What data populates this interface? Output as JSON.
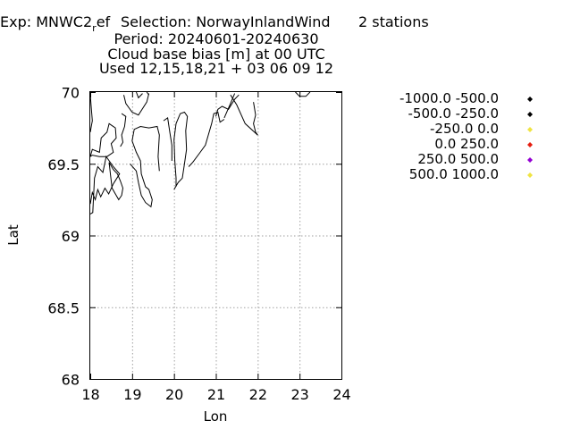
{
  "header": {
    "exp_prefix": "Exp: MNWC2",
    "exp_sub": "r",
    "exp_suffix": "ef",
    "selection": "Selection: NorwayInlandWind",
    "stations": "2 stations",
    "period": "Period: 20240601-20240630",
    "metric": "Cloud base bias [m] at  00 UTC",
    "used": "Used 12,15,18,21 + 03 06 09 12"
  },
  "chart_data": {
    "type": "scatter",
    "title": "Cloud base bias [m] at  00 UTC",
    "xlabel": "Lon",
    "ylabel": "Lat",
    "xlim": [
      18,
      24
    ],
    "ylim": [
      68,
      70
    ],
    "xticks": [
      18,
      19,
      20,
      21,
      22,
      23,
      24
    ],
    "yticks": [
      68,
      68.5,
      69,
      69.5,
      70
    ],
    "xtick_labels": [
      "18",
      "19",
      "20",
      "21",
      "22",
      "23",
      "24"
    ],
    "ytick_labels": [
      "68",
      "68.5",
      "69",
      "69.5",
      "70"
    ],
    "grid": true,
    "legend_placement": "right",
    "legend": [
      {
        "label": "-1000.0 -500.0",
        "color": "#000000"
      },
      {
        "label": "-500.0 -250.0",
        "color": "#000000"
      },
      {
        "label": "-250.0 0.0",
        "color": "#f0e442"
      },
      {
        "label": "0.0 250.0",
        "color": "#e51e10"
      },
      {
        "label": "250.0 500.0",
        "color": "#9400d3"
      },
      {
        "label": "500.0 1000.0",
        "color": "#f0e442"
      }
    ],
    "series": [],
    "coastline": [
      [
        [
          18.0,
          69.15
        ],
        [
          18.06,
          69.16
        ],
        [
          18.1,
          69.4
        ],
        [
          18.18,
          69.48
        ],
        [
          18.3,
          69.44
        ],
        [
          18.38,
          69.55
        ],
        [
          18.55,
          69.48
        ],
        [
          18.7,
          69.43
        ],
        [
          18.55,
          69.36
        ],
        [
          18.44,
          69.29
        ],
        [
          18.35,
          69.33
        ],
        [
          18.25,
          69.27
        ],
        [
          18.18,
          69.32
        ],
        [
          18.12,
          69.25
        ],
        [
          18.05,
          69.3
        ],
        [
          18.0,
          69.22
        ]
      ],
      [
        [
          18.0,
          69.55
        ],
        [
          18.05,
          69.6
        ],
        [
          18.22,
          69.58
        ],
        [
          18.26,
          69.68
        ],
        [
          18.4,
          69.72
        ],
        [
          18.45,
          69.78
        ],
        [
          18.6,
          69.75
        ],
        [
          18.62,
          69.68
        ],
        [
          18.5,
          69.64
        ],
        [
          18.55,
          69.58
        ],
        [
          18.4,
          69.55
        ],
        [
          18.22,
          69.55
        ],
        [
          18.05,
          69.56
        ],
        [
          18.0,
          69.55
        ]
      ],
      [
        [
          18.0,
          69.98
        ],
        [
          18.05,
          69.8
        ],
        [
          18.0,
          69.72
        ]
      ],
      [
        [
          18.75,
          69.85
        ],
        [
          18.85,
          69.83
        ],
        [
          18.82,
          69.76
        ],
        [
          18.75,
          69.7
        ],
        [
          18.78,
          69.65
        ],
        [
          18.72,
          69.62
        ]
      ],
      [
        [
          18.8,
          69.98
        ],
        [
          18.85,
          69.92
        ],
        [
          19.0,
          69.86
        ],
        [
          19.15,
          69.84
        ],
        [
          19.35,
          69.93
        ],
        [
          19.4,
          69.99
        ]
      ],
      [
        [
          19.1,
          70.0
        ],
        [
          19.15,
          69.96
        ],
        [
          19.25,
          69.99
        ]
      ],
      [
        [
          19.35,
          70.0
        ],
        [
          19.4,
          69.98
        ]
      ],
      [
        [
          18.45,
          69.51
        ],
        [
          18.55,
          69.46
        ],
        [
          18.65,
          69.43
        ],
        [
          18.72,
          69.38
        ],
        [
          18.78,
          69.33
        ],
        [
          18.75,
          69.28
        ],
        [
          18.68,
          69.25
        ],
        [
          18.6,
          69.29
        ],
        [
          18.52,
          69.33
        ],
        [
          18.48,
          69.43
        ],
        [
          18.45,
          69.51
        ]
      ],
      [
        [
          18.95,
          69.5
        ],
        [
          19.1,
          69.45
        ],
        [
          19.15,
          69.37
        ],
        [
          19.22,
          69.28
        ],
        [
          19.32,
          69.23
        ],
        [
          19.45,
          69.2
        ],
        [
          19.48,
          69.25
        ],
        [
          19.4,
          69.32
        ],
        [
          19.32,
          69.34
        ],
        [
          19.22,
          69.43
        ],
        [
          19.2,
          69.52
        ],
        [
          19.1,
          69.58
        ],
        [
          19.0,
          69.66
        ],
        [
          19.05,
          69.74
        ],
        [
          19.2,
          69.76
        ],
        [
          19.4,
          69.75
        ],
        [
          19.6,
          69.76
        ],
        [
          19.65,
          69.7
        ],
        [
          19.62,
          69.55
        ],
        [
          19.65,
          69.45
        ]
      ],
      [
        [
          19.75,
          69.8
        ],
        [
          19.85,
          69.82
        ],
        [
          19.9,
          69.72
        ],
        [
          19.95,
          69.63
        ],
        [
          19.95,
          69.52
        ]
      ],
      [
        [
          20.0,
          69.32
        ],
        [
          20.1,
          69.37
        ],
        [
          20.2,
          69.4
        ],
        [
          20.25,
          69.5
        ],
        [
          20.3,
          69.6
        ],
        [
          20.28,
          69.73
        ],
        [
          20.32,
          69.83
        ],
        [
          20.25,
          69.86
        ],
        [
          20.15,
          69.85
        ],
        [
          20.05,
          69.78
        ],
        [
          20.0,
          69.67
        ],
        [
          20.02,
          69.52
        ],
        [
          20.05,
          69.4
        ],
        [
          20.05,
          69.34
        ]
      ],
      [
        [
          20.35,
          69.48
        ],
        [
          20.45,
          69.51
        ],
        [
          20.6,
          69.57
        ],
        [
          20.75,
          69.63
        ],
        [
          20.9,
          69.78
        ],
        [
          20.95,
          69.85
        ],
        [
          21.05,
          69.86
        ],
        [
          21.1,
          69.79
        ],
        [
          21.2,
          69.81
        ]
      ],
      [
        [
          21.0,
          69.83
        ],
        [
          21.05,
          69.88
        ],
        [
          21.15,
          69.9
        ],
        [
          21.3,
          69.88
        ],
        [
          21.45,
          69.95
        ],
        [
          21.55,
          69.98
        ]
      ],
      [
        [
          21.2,
          69.82
        ],
        [
          21.35,
          69.92
        ],
        [
          21.45,
          69.99
        ]
      ],
      [
        [
          21.35,
          69.98
        ],
        [
          21.5,
          69.91
        ],
        [
          21.7,
          69.78
        ],
        [
          22.0,
          69.7
        ]
      ],
      [
        [
          21.9,
          69.93
        ],
        [
          21.95,
          69.84
        ],
        [
          21.9,
          69.78
        ],
        [
          21.95,
          69.72
        ],
        [
          22.0,
          69.7
        ]
      ],
      [
        [
          22.9,
          70.0
        ],
        [
          23.0,
          69.97
        ],
        [
          23.15,
          69.97
        ],
        [
          23.25,
          70.0
        ]
      ]
    ]
  }
}
